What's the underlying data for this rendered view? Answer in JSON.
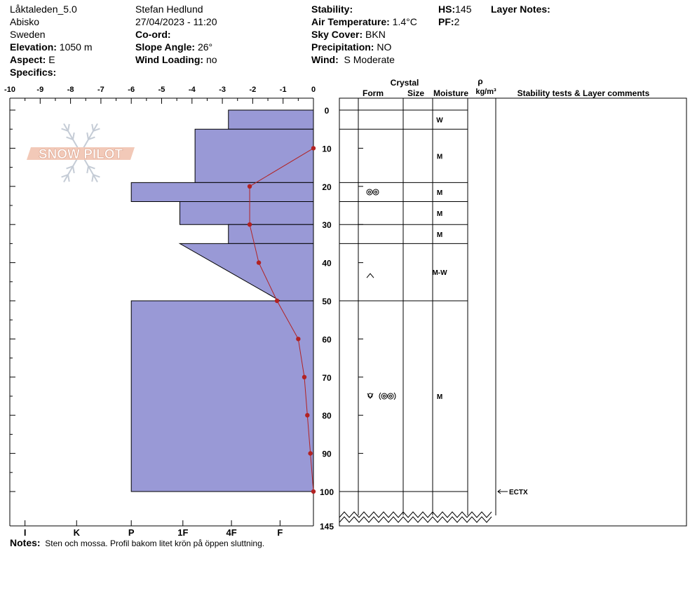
{
  "header": {
    "location": "Låktaleden_5.0",
    "region": "Abisko",
    "country": "Sweden",
    "elevation_label": "Elevation:",
    "elevation": "1050 m",
    "aspect_label": "Aspect:",
    "aspect": "E",
    "specifics_label": "Specifics:",
    "observer": "Stefan Hedlund",
    "datetime": "27/04/2023 - 11:20",
    "coord_label": "Co-ord:",
    "slope_label": "Slope Angle:",
    "slope": "26°",
    "wind_loading_label": "Wind Loading:",
    "wind_loading": "no",
    "stability_label": "Stability:",
    "air_temp_label": "Air Temperature:",
    "air_temp": "1.4°C",
    "sky_label": "Sky Cover:",
    "sky": "BKN",
    "precip_label": "Precipitation:",
    "precip": "NO",
    "wind_label": "Wind:",
    "wind": "S Moderate",
    "hs_label": "HS:",
    "hs": "145",
    "pf_label": "PF:",
    "pf": "2",
    "layer_notes_label": "Layer Notes:"
  },
  "notes": {
    "label": "Notes:",
    "text": "Sten och mossa. Profil bakom litet krön  på öppen sluttning."
  },
  "logo_text": "SNOW PILOT",
  "colors": {
    "hardness_fill": "#9999d6",
    "temp_line": "#b22222",
    "axis": "#000000"
  },
  "chart_data": {
    "type": "snow-profile",
    "temp_axis": {
      "ticks": [
        -10,
        -9,
        -8,
        -7,
        -6,
        -5,
        -4,
        -3,
        -2,
        -1,
        0
      ],
      "labels": [
        "-10",
        "-9",
        "-8",
        "-7",
        "-6",
        "-5",
        "-4",
        "-3",
        "-2",
        "-1",
        "0"
      ],
      "range": [
        -10,
        0
      ]
    },
    "hardness_axis": {
      "labels": [
        "I",
        "K",
        "P",
        "1F",
        "4F",
        "F"
      ],
      "positions": [
        -9.5,
        -7.8,
        -6,
        -4.3,
        -2.7,
        -1.1
      ]
    },
    "depth_axis": {
      "ticks": [
        0,
        10,
        20,
        30,
        40,
        50,
        60,
        70,
        80,
        90,
        100
      ],
      "labels": [
        "0",
        "10",
        "20",
        "30",
        "40",
        "50",
        "60",
        "70",
        "80",
        "90",
        "100"
      ],
      "break_label": "145",
      "range": [
        0,
        100
      ]
    },
    "hardness_layers": [
      {
        "top": 0,
        "bottom": 5,
        "top_value": -2.8,
        "bottom_value": -2.8
      },
      {
        "top": 5,
        "bottom": 19,
        "top_value": -3.9,
        "bottom_value": -3.9
      },
      {
        "top": 19,
        "bottom": 24,
        "top_value": -6.0,
        "bottom_value": -6.0
      },
      {
        "top": 24,
        "bottom": 30,
        "top_value": -4.4,
        "bottom_value": -4.4
      },
      {
        "top": 30,
        "bottom": 35,
        "top_value": -2.8,
        "bottom_value": -2.8
      },
      {
        "top": 35,
        "bottom": 50,
        "top_value": -4.4,
        "bottom_value": -1.1
      },
      {
        "top": 50,
        "bottom": 100,
        "top_value": -6.0,
        "bottom_value": -6.0
      }
    ],
    "temperature_profile": {
      "depth": [
        10,
        20,
        30,
        40,
        50,
        60,
        70,
        80,
        90,
        100
      ],
      "temp": [
        0,
        -2.1,
        -2.1,
        -1.8,
        -1.2,
        -0.5,
        -0.3,
        -0.2,
        -0.1,
        0
      ]
    },
    "table": {
      "headers": {
        "crystal": "Crystal",
        "form": "Form",
        "size": "Size",
        "moisture": "Moisture",
        "density_symbol": "ρ",
        "density_unit": "kg/m³",
        "stability": "Stability tests & Layer comments"
      },
      "layer_boundaries": [
        0,
        5,
        19,
        24,
        30,
        35,
        50,
        100
      ],
      "rows": [
        {
          "top": 0,
          "bottom": 5,
          "moisture": "W",
          "form": ""
        },
        {
          "top": 5,
          "bottom": 19,
          "moisture": "M",
          "form": ""
        },
        {
          "top": 19,
          "bottom": 24,
          "moisture": "M",
          "form": "melt-forms-icon"
        },
        {
          "top": 24,
          "bottom": 30,
          "moisture": "M",
          "form": ""
        },
        {
          "top": 30,
          "bottom": 35,
          "moisture": "M",
          "form": ""
        },
        {
          "top": 35,
          "bottom": 50,
          "moisture": "M-W",
          "form": "faceted-icon"
        },
        {
          "top": 50,
          "bottom": 100,
          "moisture": "M",
          "form": "rounded-melt-forms-icon"
        }
      ],
      "stability_tests": [
        {
          "depth": 100,
          "label": "ECTX"
        }
      ]
    }
  }
}
